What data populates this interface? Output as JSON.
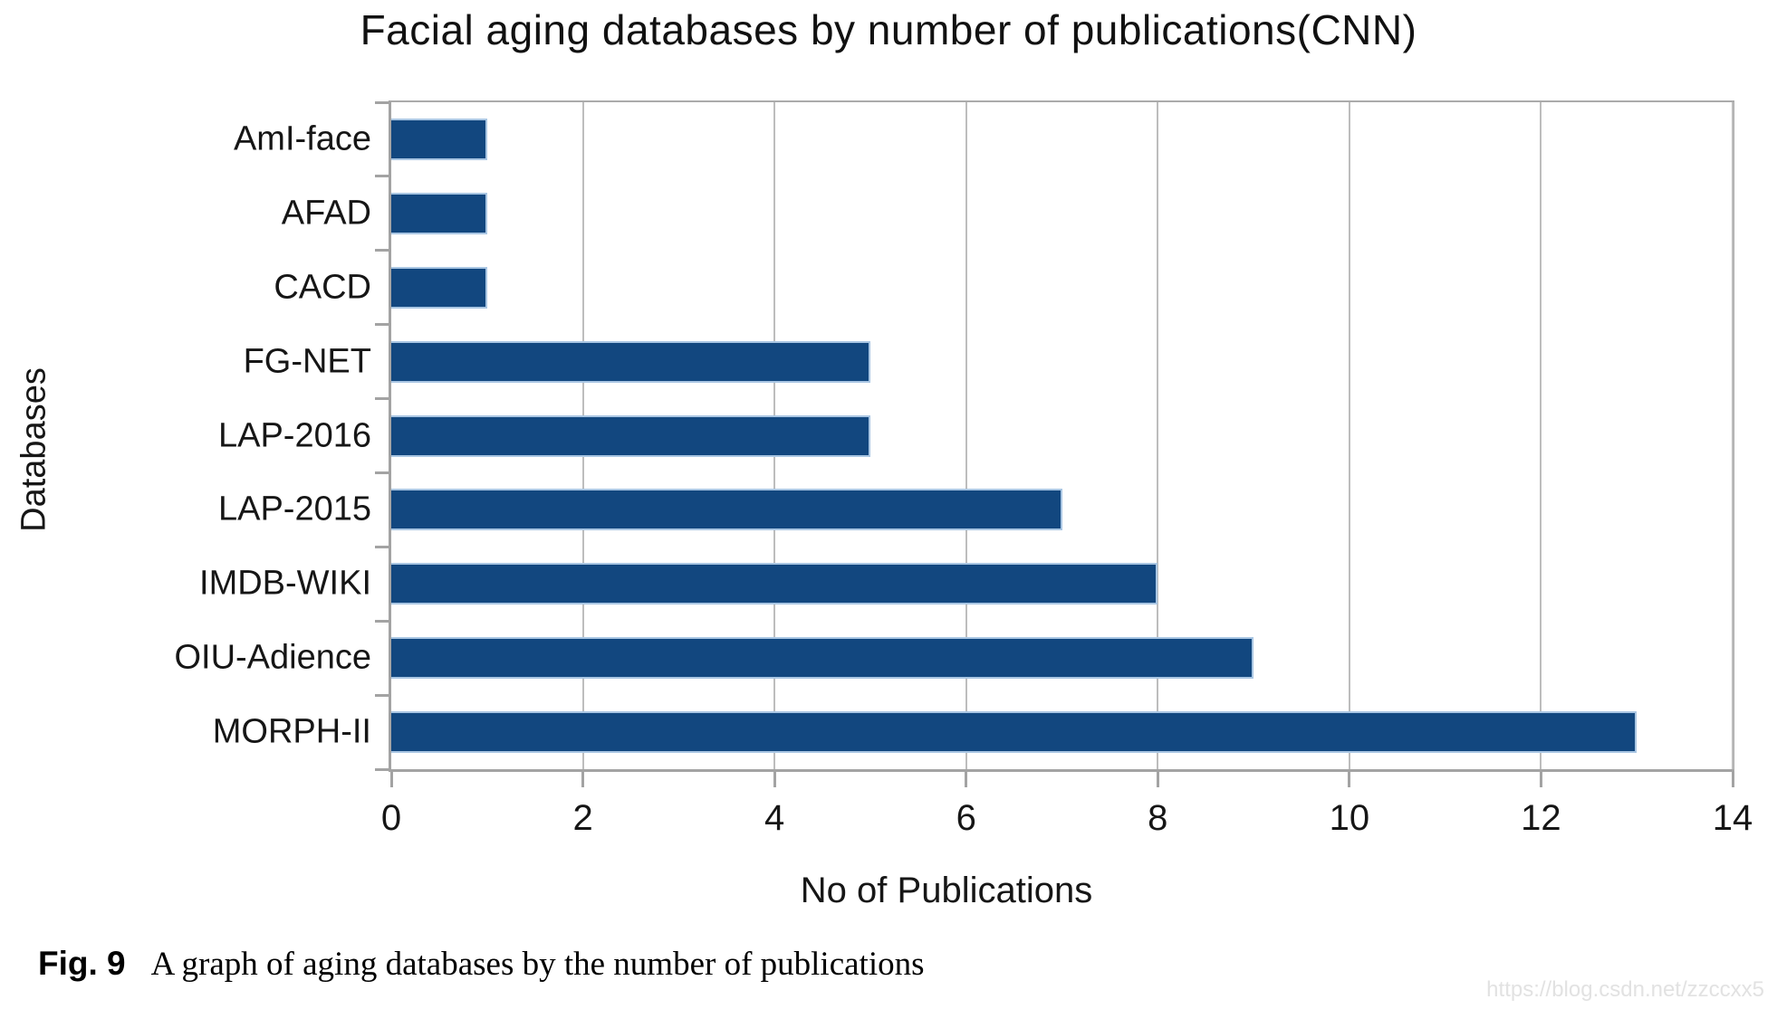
{
  "figure": {
    "caption_label": "Fig. 9",
    "caption_text": "A graph of aging databases by the number of publications",
    "watermark": "https://blog.csdn.net/zzccxx5"
  },
  "chart_data": {
    "type": "bar",
    "orientation": "horizontal",
    "title": "Facial aging databases by number of publications(CNN)",
    "categories": [
      "AmI-face",
      "AFAD",
      "CACD",
      "FG-NET",
      "LAP-2016",
      "LAP-2015",
      "IMDB-WIKI",
      "OIU-Adience",
      "MORPH-II"
    ],
    "values": [
      1,
      1,
      1,
      5,
      5,
      7,
      8,
      9,
      13
    ],
    "xlabel": "No of Publications",
    "ylabel": "Databases",
    "xlim": [
      0,
      14
    ],
    "x_ticks": [
      0,
      2,
      4,
      6,
      8,
      10,
      12,
      14
    ],
    "grid": "vertical-only",
    "legend": "none",
    "bar_color": "#12477F",
    "bar_border_color": "#A9C6E3",
    "grid_color": "#BDBDBD",
    "axis_color": "#A3A3A3"
  }
}
